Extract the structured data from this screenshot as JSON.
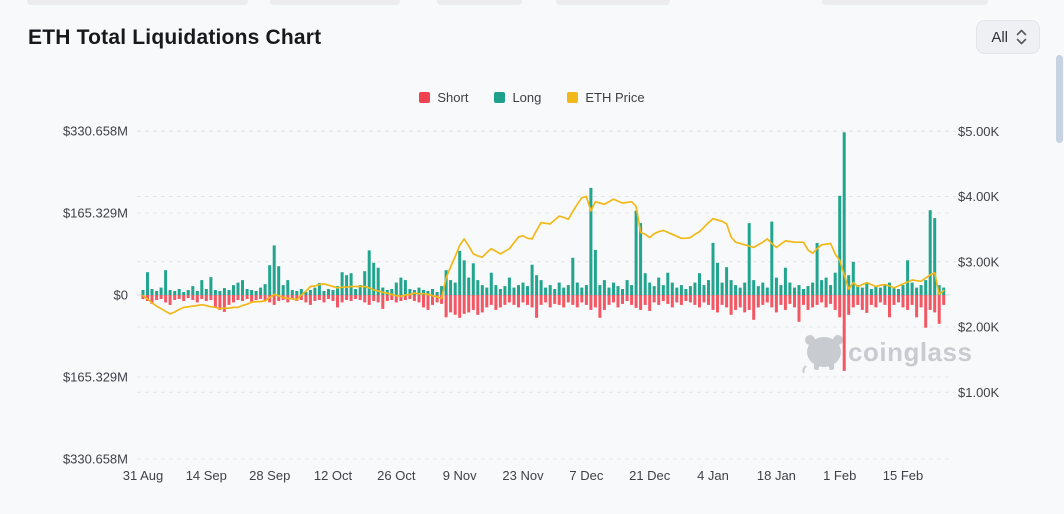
{
  "page": {
    "title": "ETH Total Liquidations Chart"
  },
  "controls": {
    "range_selector": {
      "value": "All"
    }
  },
  "watermark": {
    "text": "coinglass"
  },
  "chart_data": {
    "type": "bar",
    "title": "ETH Total Liquidations Chart",
    "description": "Daily ETH long/short liquidations (bars, left axis, $M) with ETH price overlay (line, right axis, $K). Range 31 Aug to late Feb.",
    "legend_position": "top-center",
    "grid": true,
    "x_tick_labels": [
      "31 Aug",
      "14 Sep",
      "28 Sep",
      "12 Oct",
      "26 Oct",
      "9 Nov",
      "23 Nov",
      "7 Dec",
      "21 Dec",
      "4 Jan",
      "18 Jan",
      "1 Feb",
      "15 Feb"
    ],
    "x_tick_interval_days": 14,
    "n_points": 178,
    "left_axis": {
      "tick_labels": [
        "$330.658M",
        "$165.329M",
        "$0",
        "$165.329M",
        "$330.658M"
      ],
      "tick_values": [
        330.658,
        165.329,
        0,
        -165.329,
        -330.658
      ],
      "unit": "USD millions"
    },
    "right_axis": {
      "tick_labels": [
        "$5.00K",
        "$4.00K",
        "$3.00K",
        "$2.00K",
        "$1.00K"
      ],
      "tick_values": [
        5,
        4,
        3,
        2,
        1
      ],
      "unit": "USD thousands"
    },
    "series": [
      {
        "name": "Short",
        "type": "bar",
        "direction": "down",
        "axis": "left",
        "color": "#f0424f",
        "bar_color": "#f25763",
        "values": [
          8,
          12,
          18,
          10,
          8,
          15,
          20,
          10,
          8,
          12,
          6,
          10,
          15,
          8,
          12,
          10,
          25,
          30,
          34,
          20,
          15,
          10,
          12,
          8,
          15,
          10,
          8,
          12,
          15,
          20,
          12,
          10,
          15,
          8,
          12,
          10,
          15,
          20,
          12,
          10,
          15,
          8,
          12,
          25,
          15,
          10,
          12,
          8,
          10,
          15,
          20,
          12,
          15,
          28,
          12,
          10,
          15,
          12,
          10,
          8,
          12,
          15,
          25,
          30,
          20,
          15,
          18,
          45,
          35,
          40,
          46,
          38,
          35,
          30,
          40,
          35,
          25,
          20,
          30,
          25,
          20,
          15,
          20,
          25,
          15,
          20,
          25,
          46,
          20,
          15,
          25,
          18,
          20,
          25,
          15,
          20,
          25,
          15,
          20,
          30,
          25,
          46,
          30,
          20,
          15,
          25,
          18,
          12,
          20,
          26,
          30,
          20,
          32,
          15,
          20,
          12,
          18,
          25,
          15,
          20,
          12,
          15,
          20,
          25,
          15,
          20,
          30,
          35,
          20,
          25,
          40,
          30,
          25,
          35,
          30,
          50,
          25,
          20,
          15,
          25,
          35,
          20,
          30,
          18,
          25,
          54,
          20,
          30,
          25,
          20,
          15,
          25,
          18,
          30,
          45,
          153,
          40,
          25,
          20,
          30,
          36,
          20,
          25,
          15,
          20,
          45,
          20,
          15,
          25,
          30,
          20,
          45,
          25,
          66,
          30,
          35,
          58,
          20
        ]
      },
      {
        "name": "Long",
        "type": "bar",
        "direction": "up",
        "axis": "left",
        "color": "#1fa08d",
        "bar_color": "#22a58f",
        "values": [
          10,
          46,
          12,
          8,
          15,
          50,
          10,
          8,
          12,
          6,
          10,
          18,
          8,
          30,
          12,
          36,
          10,
          8,
          14,
          10,
          20,
          25,
          30,
          12,
          10,
          8,
          15,
          22,
          60,
          100,
          58,
          20,
          30,
          10,
          8,
          12,
          6,
          10,
          15,
          24,
          8,
          12,
          10,
          18,
          46,
          40,
          44,
          12,
          20,
          48,
          90,
          65,
          55,
          15,
          10,
          12,
          25,
          35,
          30,
          12,
          10,
          15,
          10,
          8,
          12,
          6,
          18,
          50,
          30,
          25,
          89,
          70,
          35,
          64,
          30,
          20,
          15,
          45,
          20,
          12,
          18,
          35,
          15,
          20,
          25,
          18,
          61,
          40,
          30,
          15,
          20,
          12,
          25,
          15,
          20,
          75,
          25,
          15,
          20,
          216,
          91,
          20,
          30,
          15,
          25,
          18,
          12,
          30,
          20,
          170,
          145,
          44,
          25,
          18,
          35,
          20,
          45,
          25,
          15,
          20,
          12,
          18,
          25,
          44,
          20,
          30,
          105,
          65,
          25,
          56,
          30,
          20,
          15,
          25,
          145,
          30,
          18,
          25,
          15,
          148,
          35,
          20,
          55,
          25,
          15,
          20,
          12,
          18,
          25,
          105,
          30,
          35,
          20,
          45,
          200,
          328,
          40,
          67,
          20,
          15,
          25,
          12,
          18,
          15,
          20,
          25,
          15,
          12,
          20,
          70,
          25,
          15,
          20,
          30,
          171,
          155,
          20,
          15
        ]
      },
      {
        "name": "ETH Price",
        "type": "line",
        "axis": "right",
        "color": "#f0b819",
        "values": [
          2.48,
          2.43,
          2.37,
          2.32,
          2.28,
          2.24,
          2.2,
          2.23,
          2.27,
          2.3,
          2.31,
          2.32,
          2.33,
          2.34,
          2.33,
          2.31,
          2.3,
          2.28,
          2.29,
          2.29,
          2.3,
          2.3,
          2.33,
          2.35,
          2.38,
          2.39,
          2.39,
          2.4,
          2.45,
          2.5,
          2.48,
          2.45,
          2.44,
          2.43,
          2.42,
          2.49,
          2.55,
          2.62,
          2.63,
          2.65,
          2.66,
          2.64,
          2.62,
          2.6,
          2.61,
          2.61,
          2.62,
          2.62,
          2.62,
          2.62,
          2.6,
          2.57,
          2.55,
          2.53,
          2.52,
          2.5,
          2.48,
          2.47,
          2.49,
          2.5,
          2.52,
          2.51,
          2.51,
          2.5,
          2.48,
          2.46,
          2.44,
          2.75,
          2.92,
          3.08,
          3.25,
          3.35,
          3.24,
          3.12,
          3.09,
          3.07,
          3.14,
          3.2,
          3.16,
          3.12,
          3.16,
          3.2,
          3.29,
          3.38,
          3.4,
          3.36,
          3.35,
          3.48,
          3.6,
          3.59,
          3.58,
          3.64,
          3.7,
          3.68,
          3.65,
          3.77,
          3.88,
          3.98,
          4.0,
          3.78,
          3.92,
          3.9,
          3.88,
          3.92,
          3.96,
          3.93,
          3.9,
          3.91,
          3.92,
          3.85,
          3.45,
          3.42,
          3.37,
          3.43,
          3.46,
          3.48,
          3.45,
          3.42,
          3.39,
          3.36,
          3.36,
          3.37,
          3.42,
          3.46,
          3.53,
          3.6,
          3.66,
          3.64,
          3.62,
          3.58,
          3.38,
          3.3,
          3.28,
          3.26,
          3.24,
          3.22,
          3.26,
          3.3,
          3.35,
          3.28,
          3.22,
          3.27,
          3.32,
          3.31,
          3.3,
          3.3,
          3.3,
          3.18,
          3.13,
          3.2,
          3.26,
          3.27,
          3.28,
          3.12,
          3.02,
          2.8,
          2.58,
          2.68,
          2.62,
          2.65,
          2.68,
          2.65,
          2.62,
          2.64,
          2.65,
          2.63,
          2.6,
          2.63,
          2.66,
          2.69,
          2.72,
          2.71,
          2.7,
          2.75,
          2.8,
          2.83,
          2.5,
          2.56
        ]
      }
    ],
    "colors": {
      "grid": "#e4e6ea",
      "zero_line": "#dadce0",
      "axis_text": "#3e4147",
      "watermark": "#c8cbd0"
    }
  }
}
